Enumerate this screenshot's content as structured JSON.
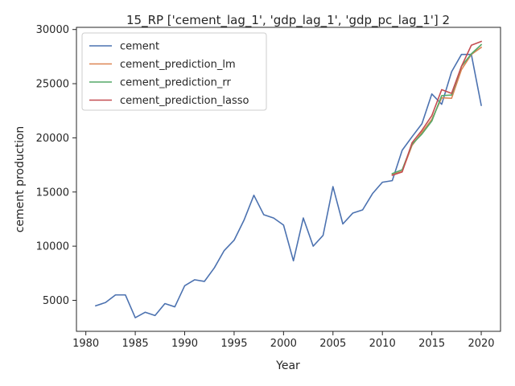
{
  "chart_data": {
    "type": "line",
    "title": "15_RP ['cement_lag_1', 'gdp_lag_1', 'gdp_pc_lag_1'] 2",
    "xlabel": "Year",
    "ylabel": "cement production",
    "xlim": [
      1979.05,
      2021.95
    ],
    "ylim": [
      2140,
      30200
    ],
    "xticks": [
      1980,
      1985,
      1990,
      1995,
      2000,
      2005,
      2010,
      2015,
      2020
    ],
    "yticks": [
      5000,
      10000,
      15000,
      20000,
      25000,
      30000
    ],
    "legend": "top-left",
    "grid": false,
    "series": [
      {
        "name": "cement",
        "color": "#4c72b0",
        "x": [
          1981,
          1982,
          1983,
          1984,
          1985,
          1986,
          1987,
          1988,
          1989,
          1990,
          1991,
          1992,
          1993,
          1994,
          1995,
          1996,
          1997,
          1998,
          1999,
          2000,
          2001,
          2002,
          2003,
          2004,
          2005,
          2006,
          2007,
          2008,
          2009,
          2010,
          2011,
          2012,
          2013,
          2014,
          2015,
          2016,
          2017,
          2018,
          2019,
          2020
        ],
        "y": [
          4500,
          4800,
          5500,
          5500,
          3400,
          3900,
          3600,
          4700,
          4400,
          6350,
          6900,
          6750,
          8000,
          9600,
          10550,
          12400,
          14700,
          12900,
          12600,
          11950,
          8650,
          12600,
          10000,
          11000,
          15500,
          12050,
          13050,
          13350,
          14850,
          15900,
          16050,
          18850,
          20100,
          21300,
          24050,
          23100,
          26100,
          27700,
          27700,
          23000
        ]
      },
      {
        "name": "cement_prediction_lm",
        "color": "#dd8452",
        "x": [
          2011,
          2012,
          2013,
          2014,
          2015,
          2016,
          2017,
          2018,
          2019,
          2020
        ],
        "y": [
          16600,
          16900,
          19300,
          20500,
          21700,
          23700,
          23650,
          26300,
          27700,
          28350
        ]
      },
      {
        "name": "cement_prediction_rr",
        "color": "#55a868",
        "x": [
          2011,
          2012,
          2013,
          2014,
          2015,
          2016,
          2017,
          2018,
          2019,
          2020
        ],
        "y": [
          16700,
          17050,
          19400,
          20350,
          21550,
          23900,
          23950,
          26600,
          27750,
          28600
        ]
      },
      {
        "name": "cement_prediction_lasso",
        "color": "#c44e52",
        "x": [
          2011,
          2012,
          2013,
          2014,
          2015,
          2016,
          2017,
          2018,
          2019,
          2020
        ],
        "y": [
          16550,
          16850,
          19550,
          20700,
          22050,
          24450,
          24100,
          26600,
          28550,
          28900
        ]
      }
    ]
  }
}
